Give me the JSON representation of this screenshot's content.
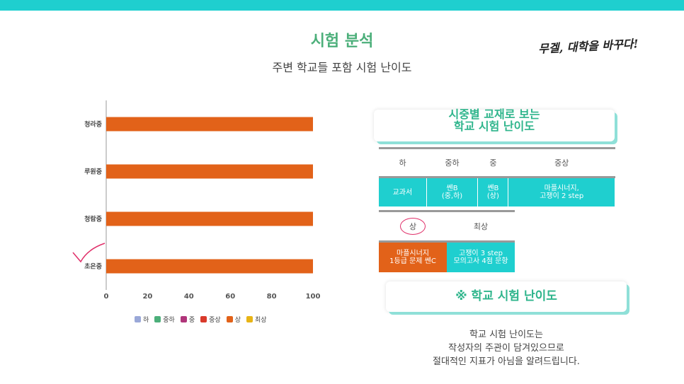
{
  "header": {
    "title": "시험 분석",
    "subtitle": "주변 학교들 포함 시험 난이도",
    "slogan": "무겔, 대학을 바꾸다!"
  },
  "chart_data": {
    "type": "bar",
    "orientation": "horizontal",
    "categories": [
      "청라중",
      "루원중",
      "청람중",
      "초은중"
    ],
    "series": [
      {
        "name": "상",
        "values": [
          100,
          100,
          100,
          100
        ],
        "color": "#e26219"
      }
    ],
    "xlim": [
      0,
      100
    ],
    "xticks": [
      0,
      20,
      40,
      60,
      80,
      100
    ],
    "legend": [
      {
        "label": "하",
        "color": "#9aa8d8"
      },
      {
        "label": "중하",
        "color": "#4caf7a"
      },
      {
        "label": "중",
        "color": "#b0357a"
      },
      {
        "label": "중상",
        "color": "#d93a2b"
      },
      {
        "label": "상",
        "color": "#e26219"
      },
      {
        "label": "최상",
        "color": "#e8b416"
      }
    ],
    "legend_position": "bottom",
    "grid": false
  },
  "textbook": {
    "card_line1": "시중별 교재로 보는",
    "card_line2": "학교 시험 난이도",
    "headers": [
      "하",
      "중하",
      "중",
      "중상"
    ],
    "row": [
      "교과서",
      "쎈B\n(중,하)",
      "쎈B\n(상)",
      "마플시너지,\n고쟁이 2 step"
    ],
    "headers2": [
      "상",
      "최상"
    ],
    "row2": [
      "마플시너지\n1등급 문제 쎈C",
      "고쟁이 3 step\n모의고사 4점 문항"
    ]
  },
  "difficulty": {
    "card_label": "※ 학교 시험 난이도",
    "note_lines": [
      "학교 시험 난이도는",
      "작성자의 주관이 담겨있으므로",
      "절대적인 지표가 아님을 알려드립니다."
    ]
  },
  "colors": {
    "accent": "#1fcfcf",
    "title_green": "#4caf7a",
    "bar": "#e26219"
  }
}
